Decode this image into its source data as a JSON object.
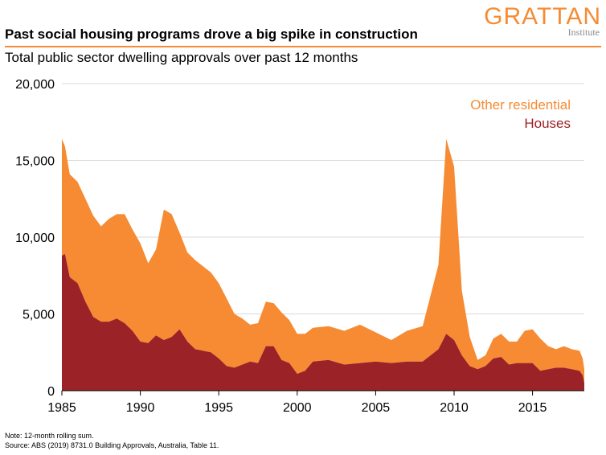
{
  "header": {
    "title": "Past social housing programs drove a big spike in construction",
    "subtitle": "Total public sector dwelling approvals over past 12 months",
    "logo_text": "GRATTAN",
    "logo_subtext": "Institute"
  },
  "footer": {
    "note": "Note: 12-month rolling sum.",
    "source": "Source: ABS (2019) 8731.0 Building Approvals, Australia, Table 11."
  },
  "colors": {
    "houses": "#9B2226",
    "other_residential": "#F68B33",
    "grid": "#d9d9d9",
    "accent": "#F68B33"
  },
  "chart_data": {
    "type": "area",
    "stacked": true,
    "title": "Past social housing programs drove a big spike in construction",
    "subtitle": "Total public sector dwelling approvals over past 12 months",
    "xlabel": "",
    "ylabel": "",
    "xlim": [
      1985,
      2018.3
    ],
    "ylim": [
      0,
      20000
    ],
    "x_ticks": [
      "1985",
      "1990",
      "1995",
      "2000",
      "2005",
      "2010",
      "2015"
    ],
    "y_ticks": [
      "0",
      "5,000",
      "10,000",
      "15,000",
      "20,000"
    ],
    "grid": true,
    "legend_position": "top-right",
    "series": [
      {
        "name": "Houses",
        "color": "#9B2226",
        "points": [
          [
            1985.0,
            8800
          ],
          [
            1985.2,
            8900
          ],
          [
            1985.5,
            7400
          ],
          [
            1986.0,
            7000
          ],
          [
            1986.5,
            5800
          ],
          [
            1987.0,
            4800
          ],
          [
            1987.5,
            4500
          ],
          [
            1988.0,
            4500
          ],
          [
            1988.5,
            4700
          ],
          [
            1989.0,
            4400
          ],
          [
            1989.5,
            3900
          ],
          [
            1990.0,
            3200
          ],
          [
            1990.5,
            3100
          ],
          [
            1991.0,
            3600
          ],
          [
            1991.5,
            3300
          ],
          [
            1992.0,
            3500
          ],
          [
            1992.5,
            4000
          ],
          [
            1993.0,
            3200
          ],
          [
            1993.5,
            2700
          ],
          [
            1994.0,
            2600
          ],
          [
            1994.5,
            2500
          ],
          [
            1995.0,
            2100
          ],
          [
            1995.5,
            1600
          ],
          [
            1996.0,
            1500
          ],
          [
            1996.5,
            1700
          ],
          [
            1997.0,
            1900
          ],
          [
            1997.5,
            1800
          ],
          [
            1998.0,
            2900
          ],
          [
            1998.5,
            2900
          ],
          [
            1999.0,
            2000
          ],
          [
            1999.5,
            1800
          ],
          [
            2000.0,
            1100
          ],
          [
            2000.5,
            1300
          ],
          [
            2001.0,
            1900
          ],
          [
            2002.0,
            2000
          ],
          [
            2003.0,
            1700
          ],
          [
            2004.0,
            1800
          ],
          [
            2005.0,
            1900
          ],
          [
            2006.0,
            1800
          ],
          [
            2007.0,
            1900
          ],
          [
            2008.0,
            1900
          ],
          [
            2009.0,
            2700
          ],
          [
            2009.5,
            3700
          ],
          [
            2010.0,
            3300
          ],
          [
            2010.5,
            2300
          ],
          [
            2011.0,
            1600
          ],
          [
            2011.5,
            1400
          ],
          [
            2012.0,
            1600
          ],
          [
            2012.5,
            2100
          ],
          [
            2013.0,
            2200
          ],
          [
            2013.5,
            1700
          ],
          [
            2014.0,
            1800
          ],
          [
            2014.5,
            1800
          ],
          [
            2015.0,
            1800
          ],
          [
            2015.5,
            1300
          ],
          [
            2016.0,
            1400
          ],
          [
            2016.5,
            1500
          ],
          [
            2017.0,
            1500
          ],
          [
            2017.5,
            1400
          ],
          [
            2018.0,
            1300
          ],
          [
            2018.2,
            1000
          ],
          [
            2018.3,
            500
          ]
        ]
      },
      {
        "name": "Other residential",
        "color": "#F68B33",
        "points": [
          [
            1985.0,
            7600
          ],
          [
            1985.2,
            7000
          ],
          [
            1985.5,
            6700
          ],
          [
            1986.0,
            6600
          ],
          [
            1986.5,
            6700
          ],
          [
            1987.0,
            6600
          ],
          [
            1987.5,
            6200
          ],
          [
            1988.0,
            6700
          ],
          [
            1988.5,
            6800
          ],
          [
            1989.0,
            7100
          ],
          [
            1989.5,
            6600
          ],
          [
            1990.0,
            6400
          ],
          [
            1990.5,
            5200
          ],
          [
            1991.0,
            5600
          ],
          [
            1991.5,
            8500
          ],
          [
            1992.0,
            8000
          ],
          [
            1992.5,
            6300
          ],
          [
            1993.0,
            5800
          ],
          [
            1993.5,
            5800
          ],
          [
            1994.0,
            5500
          ],
          [
            1994.5,
            5200
          ],
          [
            1995.0,
            4900
          ],
          [
            1995.5,
            4400
          ],
          [
            1996.0,
            3500
          ],
          [
            1996.5,
            3000
          ],
          [
            1997.0,
            2400
          ],
          [
            1997.5,
            2600
          ],
          [
            1998.0,
            2900
          ],
          [
            1998.5,
            2800
          ],
          [
            1999.0,
            3100
          ],
          [
            1999.5,
            2800
          ],
          [
            2000.0,
            2600
          ],
          [
            2000.5,
            2400
          ],
          [
            2001.0,
            2200
          ],
          [
            2002.0,
            2200
          ],
          [
            2003.0,
            2200
          ],
          [
            2004.0,
            2500
          ],
          [
            2005.0,
            1900
          ],
          [
            2006.0,
            1500
          ],
          [
            2007.0,
            2000
          ],
          [
            2008.0,
            2300
          ],
          [
            2009.0,
            5500
          ],
          [
            2009.5,
            12700
          ],
          [
            2010.0,
            11300
          ],
          [
            2010.5,
            4200
          ],
          [
            2011.0,
            1900
          ],
          [
            2011.5,
            600
          ],
          [
            2012.0,
            700
          ],
          [
            2012.5,
            1300
          ],
          [
            2013.0,
            1500
          ],
          [
            2013.5,
            1500
          ],
          [
            2014.0,
            1400
          ],
          [
            2014.5,
            2100
          ],
          [
            2015.0,
            2200
          ],
          [
            2015.5,
            2100
          ],
          [
            2016.0,
            1500
          ],
          [
            2016.5,
            1200
          ],
          [
            2017.0,
            1400
          ],
          [
            2017.5,
            1300
          ],
          [
            2018.0,
            1300
          ],
          [
            2018.2,
            1100
          ],
          [
            2018.3,
            900
          ]
        ]
      }
    ]
  }
}
